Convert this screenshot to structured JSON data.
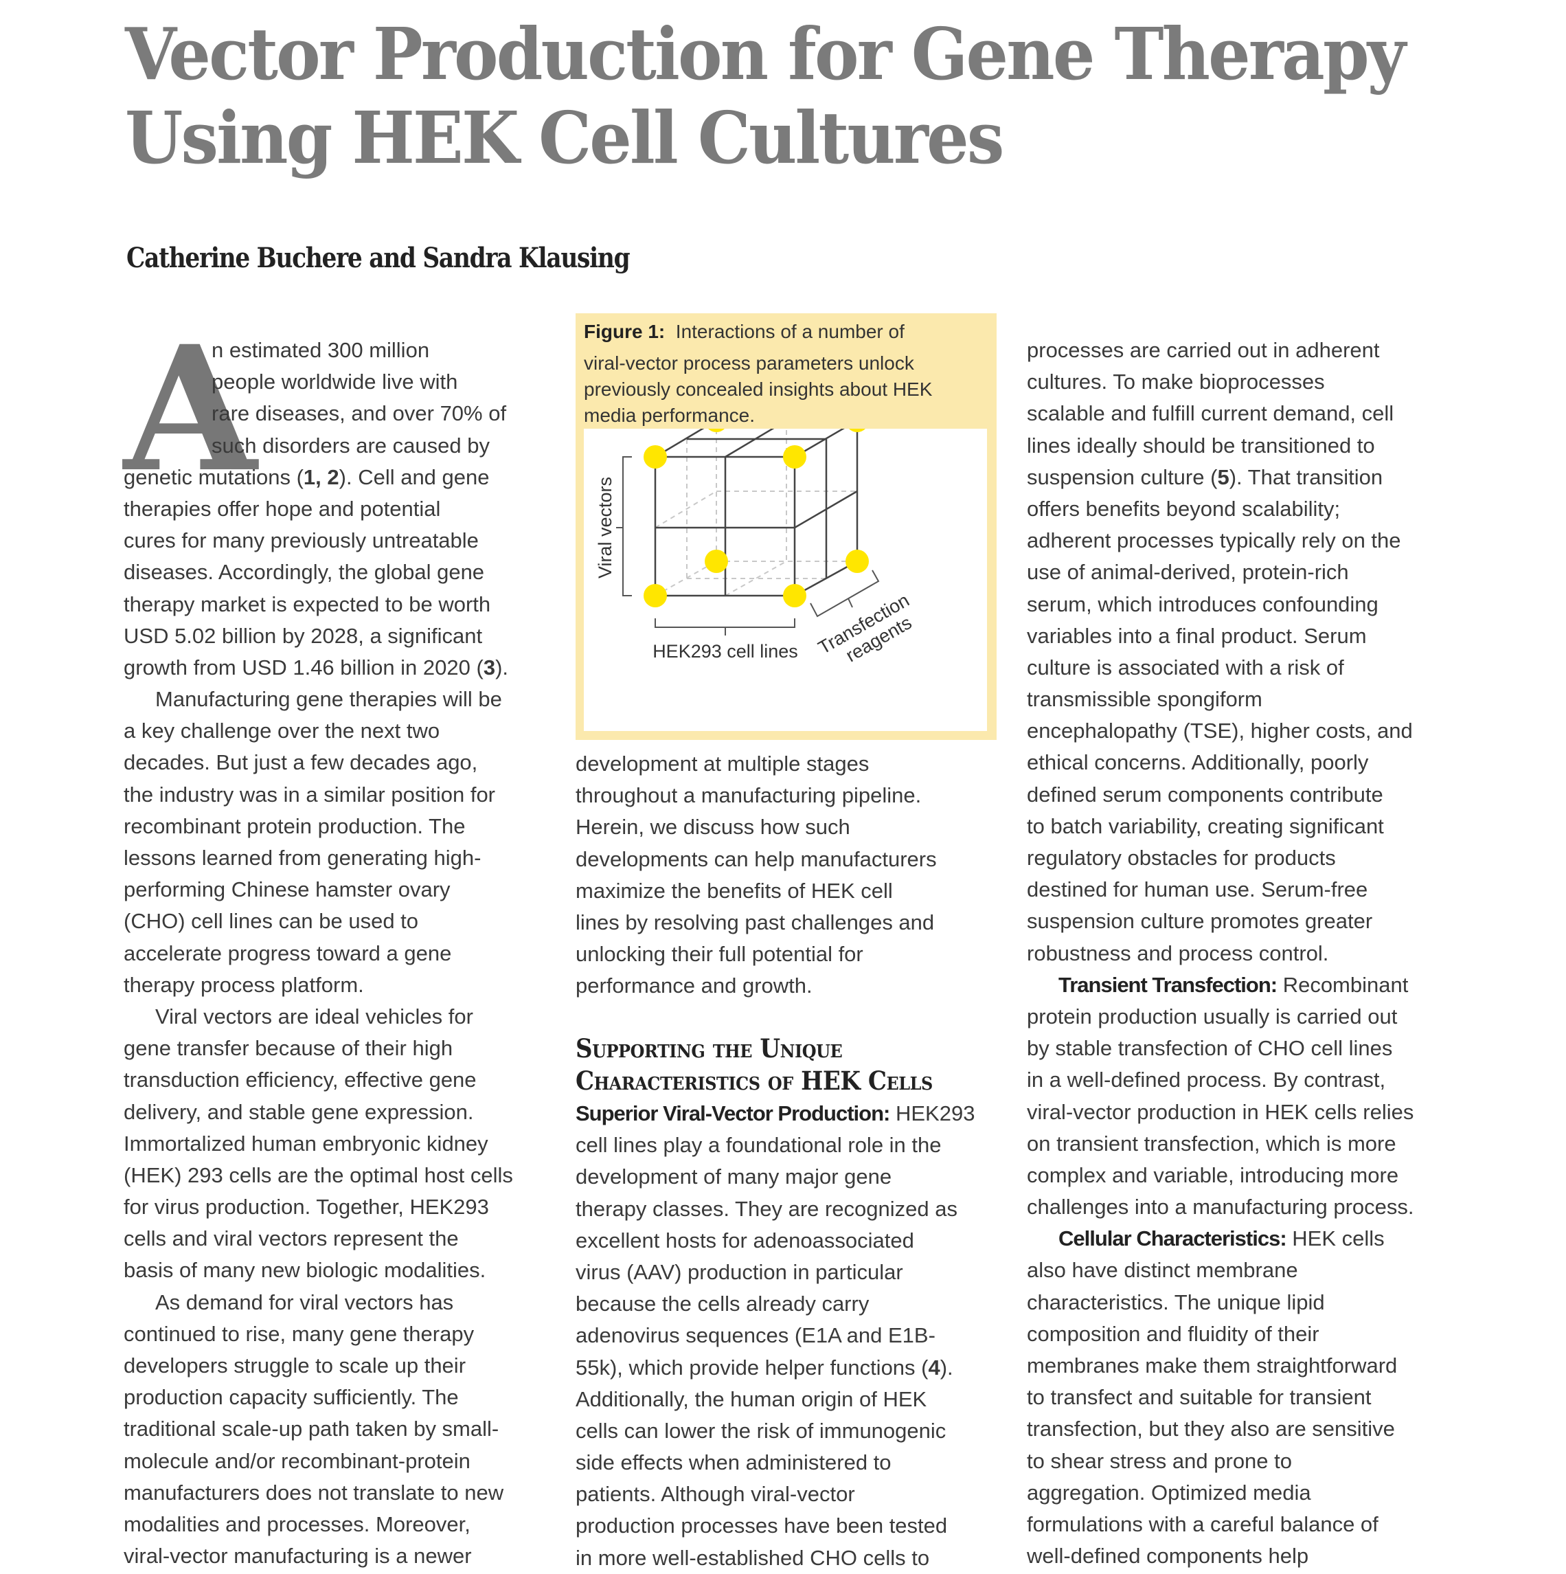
{
  "title": {
    "lines": [
      "Vector Production for Gene Therapy",
      "Using HEK Cell Cultures"
    ]
  },
  "authors": "Catherine Buchere and Sandra Klausing",
  "drop_cap": "A",
  "column1": {
    "paragraphs": [
      {
        "lines": [
          "n estimated 300 million",
          "people worldwide live with",
          "rare diseases, and over 70% of",
          "such disorders are caused by",
          [
            {
              "text": "genetic mutations ("
            },
            {
              "text": "1, 2",
              "bold": true
            },
            {
              "text": "). Cell and gene"
            }
          ],
          "therapies offer hope and potential",
          "cures for many previously untreatable",
          "diseases. Accordingly, the global gene",
          "therapy market is expected to be worth",
          "USD 5.02 billion by 2028, a significant",
          [
            {
              "text": "growth from USD 1.46 billion in 2020 ("
            },
            {
              "text": "3",
              "bold": true
            },
            {
              "text": ")."
            }
          ]
        ]
      },
      {
        "lines": [
          "Manufacturing gene therapies will be",
          "a key challenge over the next two",
          "decades. But just a few decades ago,",
          "the industry was in a similar position for",
          "recombinant protein production. The",
          "lessons learned from generating high-",
          "performing Chinese hamster ovary",
          "(CHO) cell lines can be used to",
          "accelerate progress toward a gene",
          "therapy process platform."
        ]
      },
      {
        "lines": [
          "Viral vectors are ideal vehicles for",
          "gene transfer because of their high",
          "transduction efficiency, effective gene",
          "delivery, and stable gene expression.",
          "Immortalized human embryonic kidney",
          "(HEK) 293 cells are the optimal host cells",
          "for virus production. Together, HEK293",
          "cells and viral vectors represent the",
          "basis of many new biologic modalities."
        ]
      },
      {
        "lines": [
          "As demand for viral vectors has",
          "continued to rise, many gene therapy",
          "developers struggle to scale up their",
          "production capacity sufficiently. The",
          "traditional scale-up path taken by small-",
          "molecule and/or recombinant-protein",
          "manufacturers does not translate to new",
          "modalities and processes. Moreover,",
          "viral-vector manufacturing is a newer"
        ]
      }
    ]
  },
  "figure": {
    "label": "Figure 1:",
    "caption_lines": [
      "Interactions of a number of",
      "viral-vector process parameters unlock",
      "previously concealed insights about HEK",
      "media performance."
    ],
    "axis_vertical": "Viral vectors",
    "axis_horizontal": "HEK293 cell lines",
    "axis_depth": [
      "Transfection",
      "reagents"
    ],
    "dot_color": "#ffe600"
  },
  "column2_top": {
    "paragraphs": [
      {
        "lines": [
          "development at multiple stages",
          "throughout a manufacturing pipeline.",
          "Herein, we discuss how such",
          "developments can help manufacturers",
          "maximize the benefits of HEK cell",
          "lines by resolving past challenges and",
          "unlocking their full potential for",
          "performance and growth."
        ]
      }
    ]
  },
  "section_heading": [
    "Supporting the Unique",
    "Characteristics of HEK Cells"
  ],
  "column2_bottom": {
    "paragraphs": [
      {
        "lines": [
          [
            {
              "text": "Superior Viral-Vector Production:",
              "lead": true
            },
            {
              "text": " HEK293"
            }
          ],
          "cell lines play a foundational role in the",
          "development of many major gene",
          "therapy classes. They are recognized as",
          "excellent hosts for adenoassociated",
          "virus (AAV) production in particular",
          "because the cells already carry",
          "adenovirus sequences (E1A and E1B-",
          [
            {
              "text": "55k), which provide helper functions ("
            },
            {
              "text": "4",
              "bold": true
            },
            {
              "text": ")."
            }
          ],
          "Additionally, the human origin of HEK",
          "cells can lower the risk of immunogenic",
          "side effects when administered to",
          "patients. Although viral-vector",
          "production processes have been tested",
          "in more well-established CHO cells to"
        ]
      }
    ]
  },
  "column3": {
    "paragraphs": [
      {
        "lines": [
          "processes are carried out in adherent",
          "cultures. To make bioprocesses",
          "scalable and fulfill current demand, cell",
          "lines ideally should be transitioned to",
          [
            {
              "text": "suspension culture ("
            },
            {
              "text": "5",
              "bold": true
            },
            {
              "text": "). That transition"
            }
          ],
          "offers benefits beyond scalability;",
          "adherent processes typically rely on the",
          "use of animal-derived, protein-rich",
          "serum, which introduces confounding",
          "variables into a final product. Serum",
          "culture is associated with a risk of",
          "transmissible spongiform",
          "encephalopathy (TSE), higher costs, and",
          "ethical concerns. Additionally, poorly",
          "defined serum components contribute",
          "to batch variability, creating significant",
          "regulatory obstacles for products",
          "destined for human use. Serum-free",
          "suspension culture promotes greater",
          "robustness and process control."
        ]
      },
      {
        "lines": [
          [
            {
              "text": "Transient Transfection:",
              "lead": true
            },
            {
              "text": " Recombinant"
            }
          ],
          "protein production usually is carried out",
          "by stable transfection of CHO cell lines",
          "in a well-defined process. By contrast,",
          "viral-vector production in HEK cells relies",
          "on transient transfection, which is more",
          "complex and variable, introducing more",
          "challenges into a manufacturing process."
        ]
      },
      {
        "lines": [
          [
            {
              "text": "Cellular Characteristics:",
              "lead": true
            },
            {
              "text": " HEK cells"
            }
          ],
          "also have distinct membrane",
          "characteristics. The unique lipid",
          "composition and fluidity of their",
          "membranes make them straightforward",
          "to transfect and suitable for transient",
          "transfection, but they also are sensitive",
          "to shear stress and prone to",
          "aggregation. Optimized media",
          "formulations with a careful balance of",
          "well-defined components help"
        ]
      }
    ]
  }
}
